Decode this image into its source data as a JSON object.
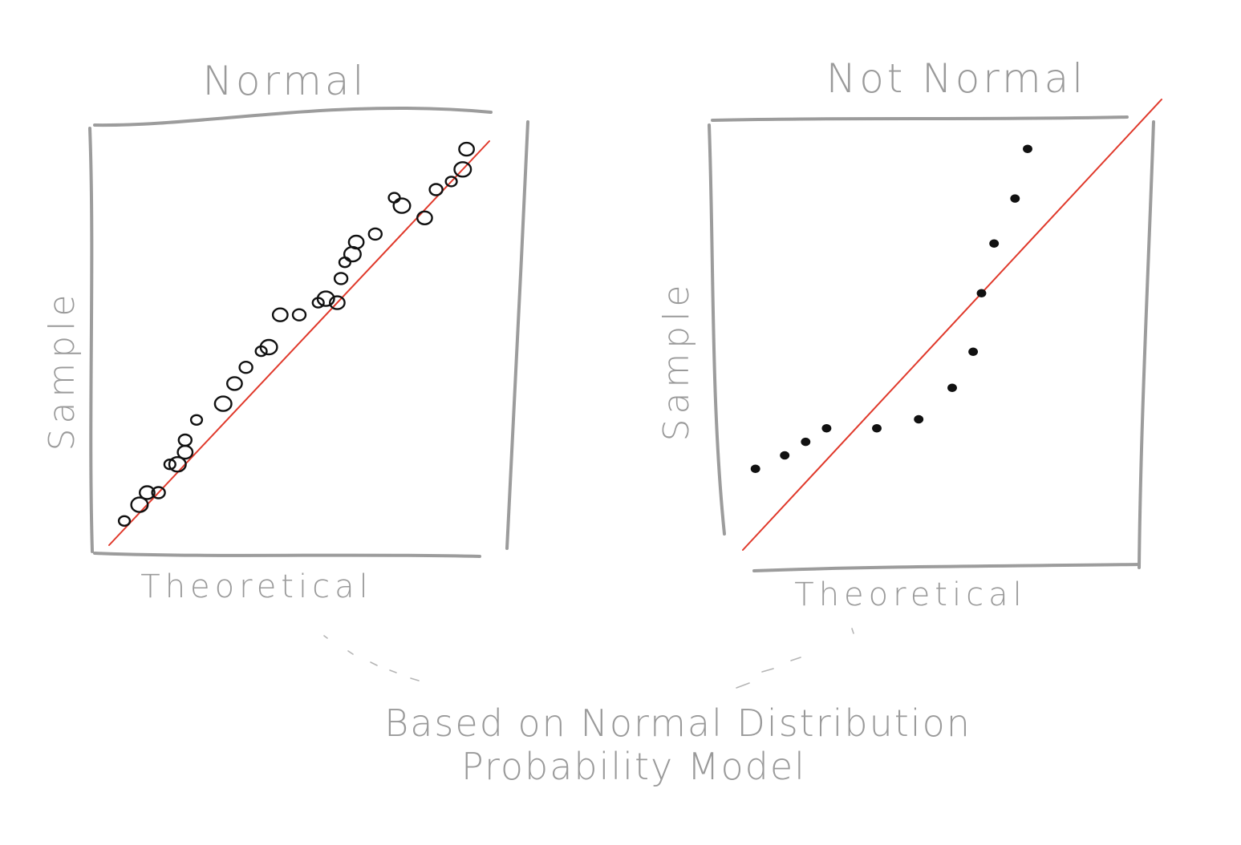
{
  "chart_data": [
    {
      "type": "scatter",
      "title": "Normal",
      "xlabel": "Theoretical",
      "ylabel": "Sample",
      "reference_line": "y = x",
      "grid": false,
      "colors": {
        "points": "#111111",
        "reference_line": "#e0392b",
        "frame": "#9c9c9c",
        "text": "#9a9a9a"
      },
      "x": [
        0.04,
        0.08,
        0.1,
        0.13,
        0.16,
        0.18,
        0.2,
        0.2,
        0.23,
        0.3,
        0.33,
        0.36,
        0.4,
        0.42,
        0.45,
        0.5,
        0.55,
        0.57,
        0.6,
        0.61,
        0.62,
        0.64,
        0.65,
        0.7,
        0.75,
        0.77,
        0.83,
        0.86,
        0.9,
        0.93,
        0.94
      ],
      "y": [
        0.06,
        0.1,
        0.13,
        0.13,
        0.2,
        0.2,
        0.23,
        0.26,
        0.31,
        0.35,
        0.4,
        0.44,
        0.48,
        0.49,
        0.57,
        0.57,
        0.6,
        0.61,
        0.6,
        0.66,
        0.7,
        0.72,
        0.75,
        0.77,
        0.86,
        0.84,
        0.81,
        0.88,
        0.9,
        0.93,
        0.98
      ],
      "xlim": [
        0,
        1
      ],
      "ylim": [
        0,
        1
      ]
    },
    {
      "type": "scatter",
      "title": "Not Normal",
      "xlabel": "Theoretical",
      "ylabel": "Sample",
      "reference_line": "y = x",
      "grid": false,
      "colors": {
        "points": "#111111",
        "reference_line": "#e0392b",
        "frame": "#9c9c9c",
        "text": "#9a9a9a"
      },
      "x": [
        0.03,
        0.1,
        0.15,
        0.2,
        0.32,
        0.42,
        0.5,
        0.55,
        0.57,
        0.6,
        0.65,
        0.68
      ],
      "y": [
        0.18,
        0.21,
        0.24,
        0.27,
        0.27,
        0.29,
        0.36,
        0.44,
        0.57,
        0.68,
        0.78,
        0.89
      ],
      "xlim": [
        0,
        1
      ],
      "ylim": [
        0,
        1
      ]
    }
  ],
  "caption": {
    "line1": "Based on Normal Distribution",
    "line2": "Probability Model"
  }
}
